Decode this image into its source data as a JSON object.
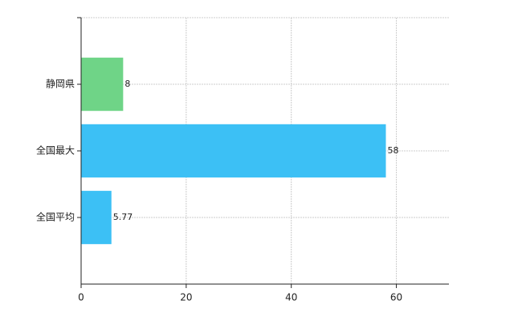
{
  "chart_data": {
    "type": "bar",
    "orientation": "horizontal",
    "categories": [
      "静岡県",
      "全国最大",
      "全国平均"
    ],
    "values": [
      8,
      58,
      5.77
    ],
    "colors": [
      "#6fd487",
      "#3cc0f5",
      "#3cc0f5"
    ],
    "xlim": [
      0,
      70
    ],
    "xticks": [
      0,
      20,
      40,
      60
    ],
    "grid": true
  }
}
